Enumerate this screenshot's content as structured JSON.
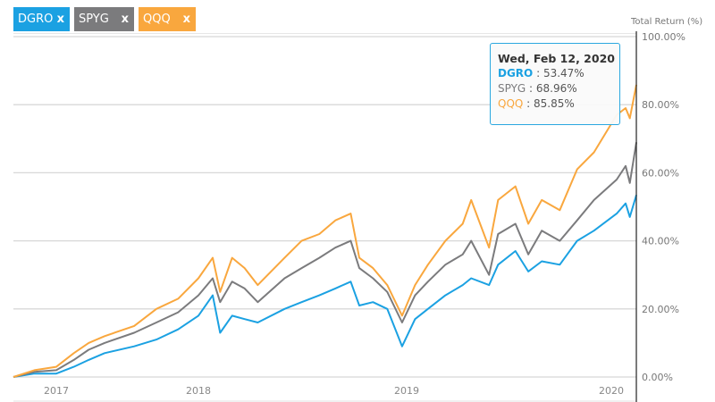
{
  "tabs": [
    {
      "label": "DGRO",
      "close": "x",
      "color": "#1ba1e2"
    },
    {
      "label": "SPYG",
      "close": "x",
      "color": "#7b7b7d"
    },
    {
      "label": "QQQ",
      "close": "x",
      "color": "#f9a73e"
    }
  ],
  "tooltip": {
    "date": "Wed, Feb 12, 2020",
    "rows": [
      {
        "name": "DGRO",
        "value": " : 53.47%"
      },
      {
        "name": "SPYG",
        "value": " : 68.96%"
      },
      {
        "name": "QQQ",
        "value": " : 85.85%"
      }
    ]
  },
  "chart_data": {
    "type": "line",
    "ylabel": "Total Return (%)",
    "ylim": [
      0,
      100
    ],
    "y_ticks": [
      "0.00%",
      "20.00%",
      "40.00%",
      "60.00%",
      "80.00%",
      "100.00%"
    ],
    "x_ticks": [
      "2017",
      "2018",
      "2019",
      "2020"
    ],
    "grid": true,
    "x": [
      "2016-10-01",
      "2016-11-15",
      "2017-01-01",
      "2017-02-15",
      "2017-03-25",
      "2017-05-05",
      "2017-07-20",
      "2017-09-15",
      "2017-11-10",
      "2018-01-01",
      "2018-01-26",
      "2018-02-08",
      "2018-03-01",
      "2018-03-23",
      "2018-04-15",
      "2018-06-01",
      "2018-07-01",
      "2018-08-01",
      "2018-08-29",
      "2018-09-25",
      "2018-10-10",
      "2018-11-03",
      "2018-11-28",
      "2018-12-24",
      "2019-01-16",
      "2019-02-08",
      "2019-03-11",
      "2019-04-11",
      "2019-04-26",
      "2019-05-28",
      "2019-06-13",
      "2019-07-14",
      "2019-08-06",
      "2019-08-30",
      "2019-10-01",
      "2019-11-01",
      "2019-12-01",
      "2020-01-10",
      "2020-01-25",
      "2020-02-01",
      "2020-02-12"
    ],
    "series": [
      {
        "name": "DGRO",
        "color": "#1ba1e2",
        "values": [
          0,
          1,
          1,
          3,
          5,
          7,
          9,
          11,
          14,
          18,
          24,
          13,
          18,
          17,
          16,
          20,
          22,
          24,
          26,
          28,
          21,
          22,
          20,
          9,
          17,
          20,
          24,
          27,
          29,
          27,
          33,
          37,
          31,
          34,
          33,
          40,
          43,
          48,
          51,
          47,
          53.47
        ]
      },
      {
        "name": "SPYG",
        "color": "#7b7b7d",
        "values": [
          0,
          1.5,
          2,
          5,
          8,
          10,
          13,
          16,
          19,
          24,
          29,
          22,
          28,
          26,
          22,
          29,
          32,
          35,
          38,
          40,
          32,
          29,
          25,
          16,
          24,
          28,
          33,
          36,
          40,
          30,
          42,
          45,
          36,
          43,
          40,
          46,
          52,
          58,
          62,
          57,
          68.96
        ]
      },
      {
        "name": "QQQ",
        "color": "#f9a73e",
        "values": [
          0,
          2,
          3,
          7,
          10,
          12,
          15,
          20,
          23,
          29,
          35,
          25,
          35,
          32,
          27,
          35,
          40,
          42,
          46,
          48,
          35,
          32,
          27,
          18,
          27,
          33,
          40,
          45,
          52,
          38,
          52,
          56,
          45,
          52,
          49,
          61,
          66,
          77,
          79,
          76,
          85.85
        ]
      }
    ]
  }
}
